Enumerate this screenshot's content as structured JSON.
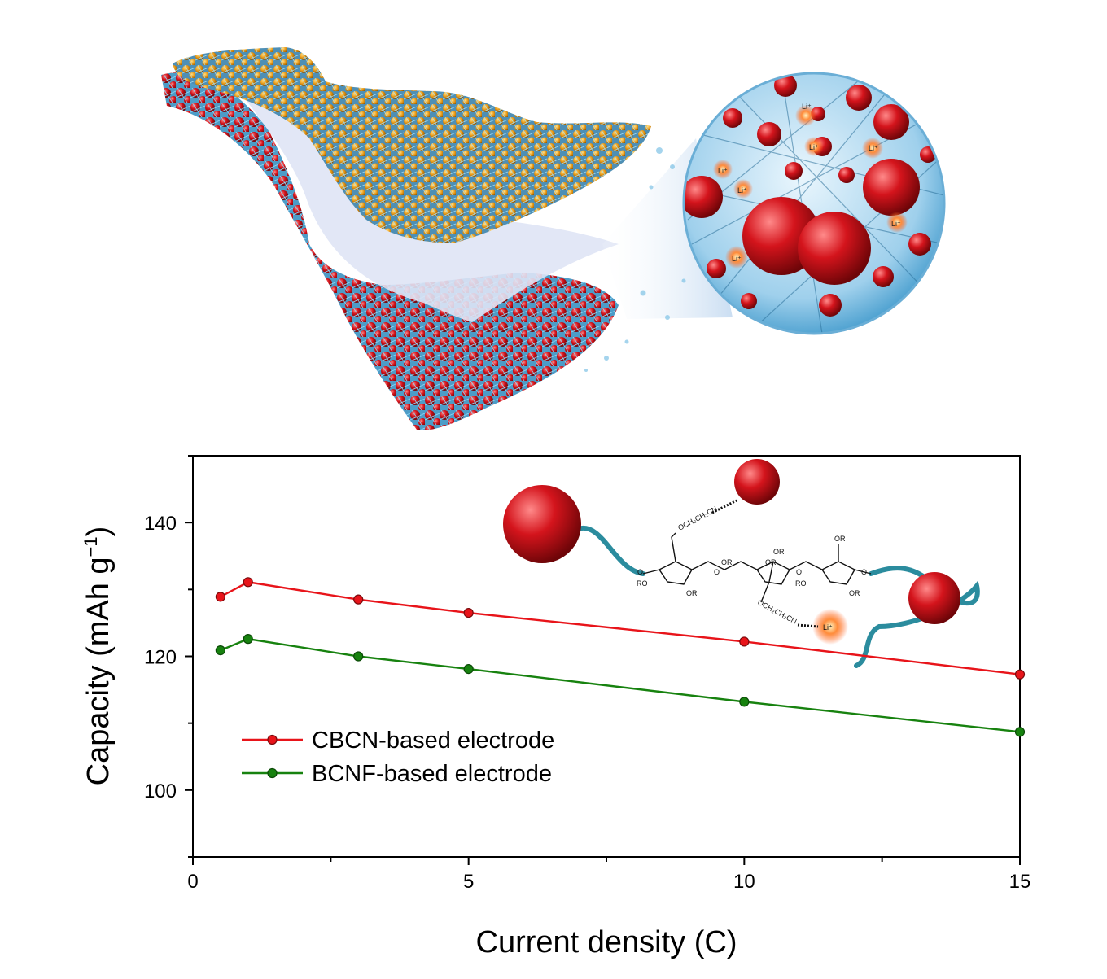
{
  "colors": {
    "series_1": "#e8141a",
    "series_2": "#17820f",
    "particle_red": "#d4141c",
    "particle_orange": "#e89a18",
    "fiber_blue": "#3aa6d6",
    "sheet": "#dfe4f5"
  },
  "illustration": {
    "li_labels": [
      "Li⁺",
      "Li⁺",
      "Li⁺",
      "Li⁺",
      "Li⁺",
      "Li⁺",
      "Li⁺"
    ]
  },
  "inset": {
    "group_labels": [
      "OCH₂CH₂CN",
      "OCH₂CH₂CN",
      "OR",
      "OR",
      "OR",
      "OR",
      "OR",
      "OR",
      "RO",
      "RO",
      "O",
      "O",
      "O",
      "O"
    ],
    "li_label": "Li⁺"
  },
  "chart_data": {
    "type": "line",
    "xlabel": "Current density (C)",
    "ylabel": "Capacity (mAh g",
    "ylabel_sup": "−1",
    "ylabel_close": ")",
    "xlim": [
      0,
      15
    ],
    "ylim": [
      90,
      150
    ],
    "xticks": [
      0,
      5,
      10,
      15
    ],
    "yticks": [
      100,
      120,
      140
    ],
    "grid": false,
    "legend_position": "lower-left",
    "series": [
      {
        "name": "CBCN-based electrode",
        "x": [
          0.5,
          1,
          3,
          5,
          10,
          15
        ],
        "y": [
          128.9,
          131.1,
          128.5,
          126.5,
          122.2,
          117.3
        ]
      },
      {
        "name": "BCNF-based electrode",
        "x": [
          0.5,
          1,
          3,
          5,
          10,
          15
        ],
        "y": [
          120.9,
          122.6,
          120.0,
          118.1,
          113.2,
          108.7
        ]
      }
    ]
  }
}
